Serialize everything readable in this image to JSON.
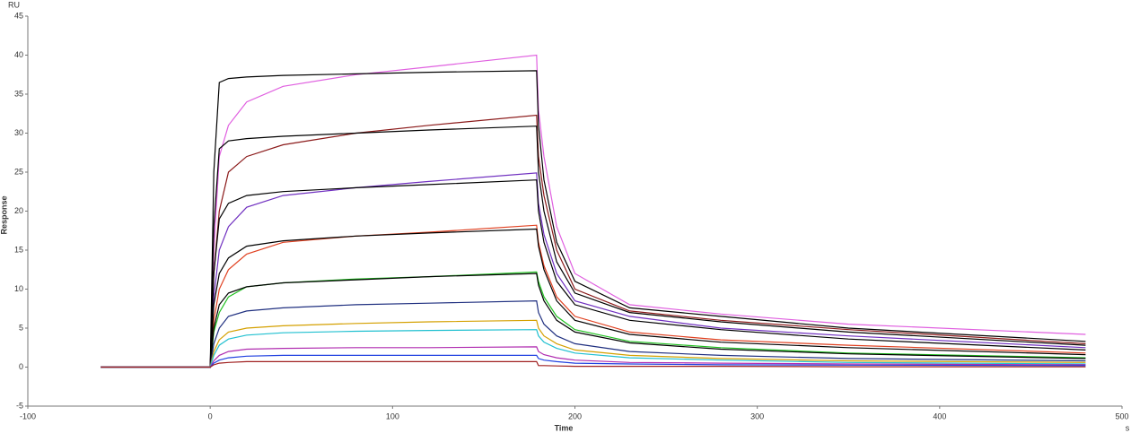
{
  "chart_data": {
    "type": "line",
    "y_unit": "RU",
    "ylabel": "Response",
    "xlabel": "Time",
    "x_unit": "s",
    "x": [
      -60,
      0,
      2,
      5,
      10,
      20,
      40,
      80,
      120,
      179,
      180,
      183,
      190,
      200,
      230,
      280,
      350,
      480
    ],
    "xlim": [
      -100,
      500
    ],
    "xticks": [
      -100,
      0,
      100,
      200,
      300,
      400,
      500
    ],
    "ylim": [
      -5,
      45
    ],
    "yticks": [
      -5,
      0,
      5,
      10,
      15,
      20,
      25,
      30,
      35,
      40,
      45
    ],
    "grid": false,
    "series": [
      {
        "color": "#e060e0",
        "values": [
          0,
          0,
          15,
          27,
          31,
          34,
          36,
          37.5,
          38.5,
          40,
          33,
          27,
          18,
          12,
          8,
          6.8,
          5.5,
          4.2
        ]
      },
      {
        "color": "#000000",
        "values": [
          0,
          0,
          25,
          36.5,
          37,
          37.2,
          37.4,
          37.6,
          37.8,
          38,
          31,
          24,
          16,
          11,
          7.6,
          6.5,
          5,
          3.3
        ]
      },
      {
        "color": "#8b1a1a",
        "values": [
          0,
          0,
          12,
          20,
          25,
          27,
          28.5,
          30,
          31,
          32.3,
          27,
          22,
          15,
          10,
          7.2,
          6,
          4.8,
          3
        ]
      },
      {
        "color": "#000000",
        "values": [
          0,
          0,
          18,
          28,
          29,
          29.3,
          29.6,
          30,
          30.4,
          30.9,
          25,
          20,
          13.5,
          9.5,
          7,
          5.8,
          4.5,
          2.8
        ]
      },
      {
        "color": "#7030c0",
        "values": [
          0,
          0,
          9,
          15,
          18,
          20.5,
          22,
          23,
          23.8,
          24.9,
          21,
          17,
          12,
          8.5,
          6.5,
          5,
          4,
          2.5
        ]
      },
      {
        "color": "#000000",
        "values": [
          0,
          0,
          12,
          19,
          21,
          22,
          22.5,
          23,
          23.4,
          24,
          20,
          16,
          11,
          8,
          6,
          4.8,
          3.6,
          2.2
        ]
      },
      {
        "color": "#e04020",
        "values": [
          0,
          0,
          6,
          10,
          12.5,
          14.5,
          16,
          16.8,
          17.3,
          18.2,
          16,
          13,
          9,
          6.5,
          4.5,
          3.5,
          2.8,
          1.8
        ]
      },
      {
        "color": "#000000",
        "values": [
          0,
          0,
          8,
          12,
          14,
          15.5,
          16.2,
          16.8,
          17.2,
          17.7,
          15.5,
          12.5,
          8.5,
          6,
          4.2,
          3.2,
          2.5,
          1.6
        ]
      },
      {
        "color": "#20c020",
        "values": [
          0,
          0,
          4.5,
          7,
          9,
          10.3,
          10.8,
          11.3,
          11.6,
          12.2,
          11,
          9,
          6.5,
          4.8,
          3.3,
          2.5,
          1.8,
          1.2
        ]
      },
      {
        "color": "#000000",
        "values": [
          0,
          0,
          5,
          8,
          9.5,
          10.3,
          10.8,
          11.2,
          11.6,
          12,
          10.5,
          8.5,
          6,
          4.5,
          3.1,
          2.3,
          1.7,
          1.1
        ]
      },
      {
        "color": "#203080",
        "values": [
          0,
          0,
          3,
          5,
          6.5,
          7.2,
          7.6,
          8,
          8.2,
          8.5,
          7,
          5.5,
          4,
          3,
          2,
          1.5,
          1.1,
          0.8
        ]
      },
      {
        "color": "#d4a000",
        "values": [
          0,
          0,
          2,
          3.5,
          4.5,
          5,
          5.3,
          5.6,
          5.8,
          6,
          5,
          4,
          3,
          2.2,
          1.5,
          1.1,
          0.8,
          0.6
        ]
      },
      {
        "color": "#20c0d0",
        "values": [
          0,
          0,
          1.5,
          2.8,
          3.6,
          4.1,
          4.4,
          4.6,
          4.7,
          4.8,
          4,
          3.2,
          2.4,
          1.8,
          1.2,
          0.9,
          0.6,
          0.4
        ]
      },
      {
        "color": "#b02cb0",
        "values": [
          0,
          0,
          0.8,
          1.5,
          2,
          2.3,
          2.4,
          2.5,
          2.5,
          2.6,
          2,
          1.6,
          1.2,
          0.9,
          0.6,
          0.5,
          0.4,
          0.3
        ]
      },
      {
        "color": "#2040e0",
        "values": [
          0,
          0,
          0.5,
          0.9,
          1.2,
          1.4,
          1.5,
          1.5,
          1.5,
          1.5,
          1.1,
          0.9,
          0.7,
          0.5,
          0.4,
          0.3,
          0.25,
          0.2
        ]
      },
      {
        "color": "#a02020",
        "values": [
          0,
          0,
          0.3,
          0.5,
          0.6,
          0.7,
          0.7,
          0.7,
          0.7,
          0.7,
          0.2,
          0.2,
          0.15,
          0.1,
          0.1,
          0.1,
          0.05,
          0.05
        ]
      }
    ]
  }
}
